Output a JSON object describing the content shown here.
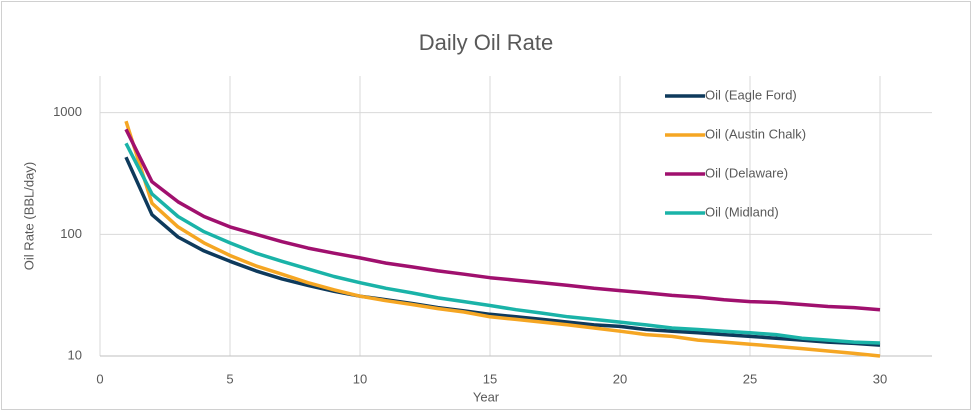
{
  "chart_data": {
    "type": "line",
    "title": "Daily Oil Rate",
    "x_label": "Year",
    "y_label": "Oil Rate (BBL/day)",
    "x": [
      1,
      2,
      3,
      4,
      5,
      6,
      7,
      8,
      9,
      10,
      11,
      12,
      13,
      14,
      15,
      16,
      17,
      18,
      19,
      20,
      21,
      22,
      23,
      24,
      25,
      26,
      27,
      28,
      29,
      30
    ],
    "series": [
      {
        "name": "Oil (Eagle Ford)",
        "color": "#0e3a5c",
        "values": [
          430,
          145,
          95,
          73,
          60,
          50,
          43,
          38,
          34,
          31,
          29,
          27,
          25,
          23.5,
          22,
          21,
          20,
          19,
          18,
          17.5,
          16.5,
          16,
          15.5,
          15,
          14.5,
          14,
          13.5,
          13,
          12.7,
          12.3
        ]
      },
      {
        "name": "Oil (Austin Chalk)",
        "color": "#f5a623",
        "values": [
          850,
          180,
          115,
          85,
          67,
          55,
          47,
          40,
          35,
          31,
          28.5,
          26.5,
          24.5,
          23,
          21,
          20,
          19,
          18,
          17,
          16,
          15,
          14.5,
          13.5,
          13,
          12.5,
          12,
          11.5,
          11,
          10.5,
          10
        ]
      },
      {
        "name": "Oil (Delaware)",
        "color": "#a0106e",
        "values": [
          730,
          270,
          185,
          140,
          115,
          100,
          87,
          77,
          70,
          64,
          58,
          54,
          50,
          47,
          44,
          42,
          40,
          38,
          36,
          34.5,
          33,
          31.5,
          30.5,
          29,
          28,
          27.5,
          26.5,
          25.5,
          25,
          24
        ]
      },
      {
        "name": "Oil (Midland)",
        "color": "#1ab3a8",
        "values": [
          560,
          215,
          140,
          105,
          85,
          70,
          60,
          52,
          45,
          40,
          36,
          33,
          30,
          28,
          26,
          24,
          22.5,
          21,
          20,
          19,
          18,
          17,
          16.5,
          16,
          15.5,
          15,
          14,
          13.5,
          13,
          12.8
        ]
      }
    ],
    "xlim": [
      0,
      30
    ],
    "xticks": [
      0,
      5,
      10,
      15,
      20,
      25,
      30
    ],
    "ylim": [
      10,
      2000
    ],
    "yticks": [
      10,
      100,
      1000
    ],
    "log_y": true,
    "grid": true,
    "legend": "upper right"
  }
}
